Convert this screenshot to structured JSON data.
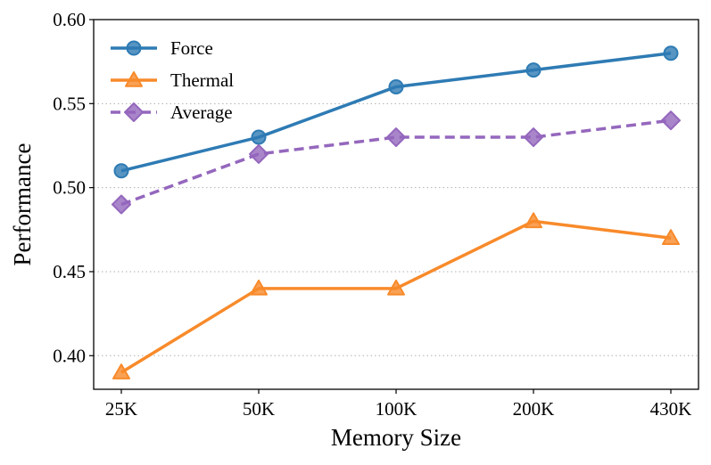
{
  "chart_data": {
    "type": "line",
    "categories": [
      "25K",
      "50K",
      "100K",
      "200K",
      "430K"
    ],
    "xlabel": "Memory Size",
    "ylabel": "Performance",
    "ylim": [
      0.38,
      0.6
    ],
    "yticks": [
      0.4,
      0.45,
      0.5,
      0.55,
      0.6
    ],
    "ytick_labels": [
      "0.40",
      "0.45",
      "0.50",
      "0.55",
      "0.60"
    ],
    "grid": "horizontal dotted",
    "legend_position": "top-left",
    "series": [
      {
        "name": "Force",
        "values": [
          0.51,
          0.53,
          0.56,
          0.57,
          0.58
        ],
        "color": "#2e7bb4",
        "marker": "circle",
        "linestyle": "solid"
      },
      {
        "name": "Thermal",
        "values": [
          0.39,
          0.44,
          0.44,
          0.48,
          0.47
        ],
        "color": "#f88a2a",
        "marker": "triangle",
        "linestyle": "solid"
      },
      {
        "name": "Average",
        "values": [
          0.49,
          0.52,
          0.53,
          0.53,
          0.54
        ],
        "color": "#9467bd",
        "marker": "diamond",
        "linestyle": "dashed"
      }
    ]
  }
}
